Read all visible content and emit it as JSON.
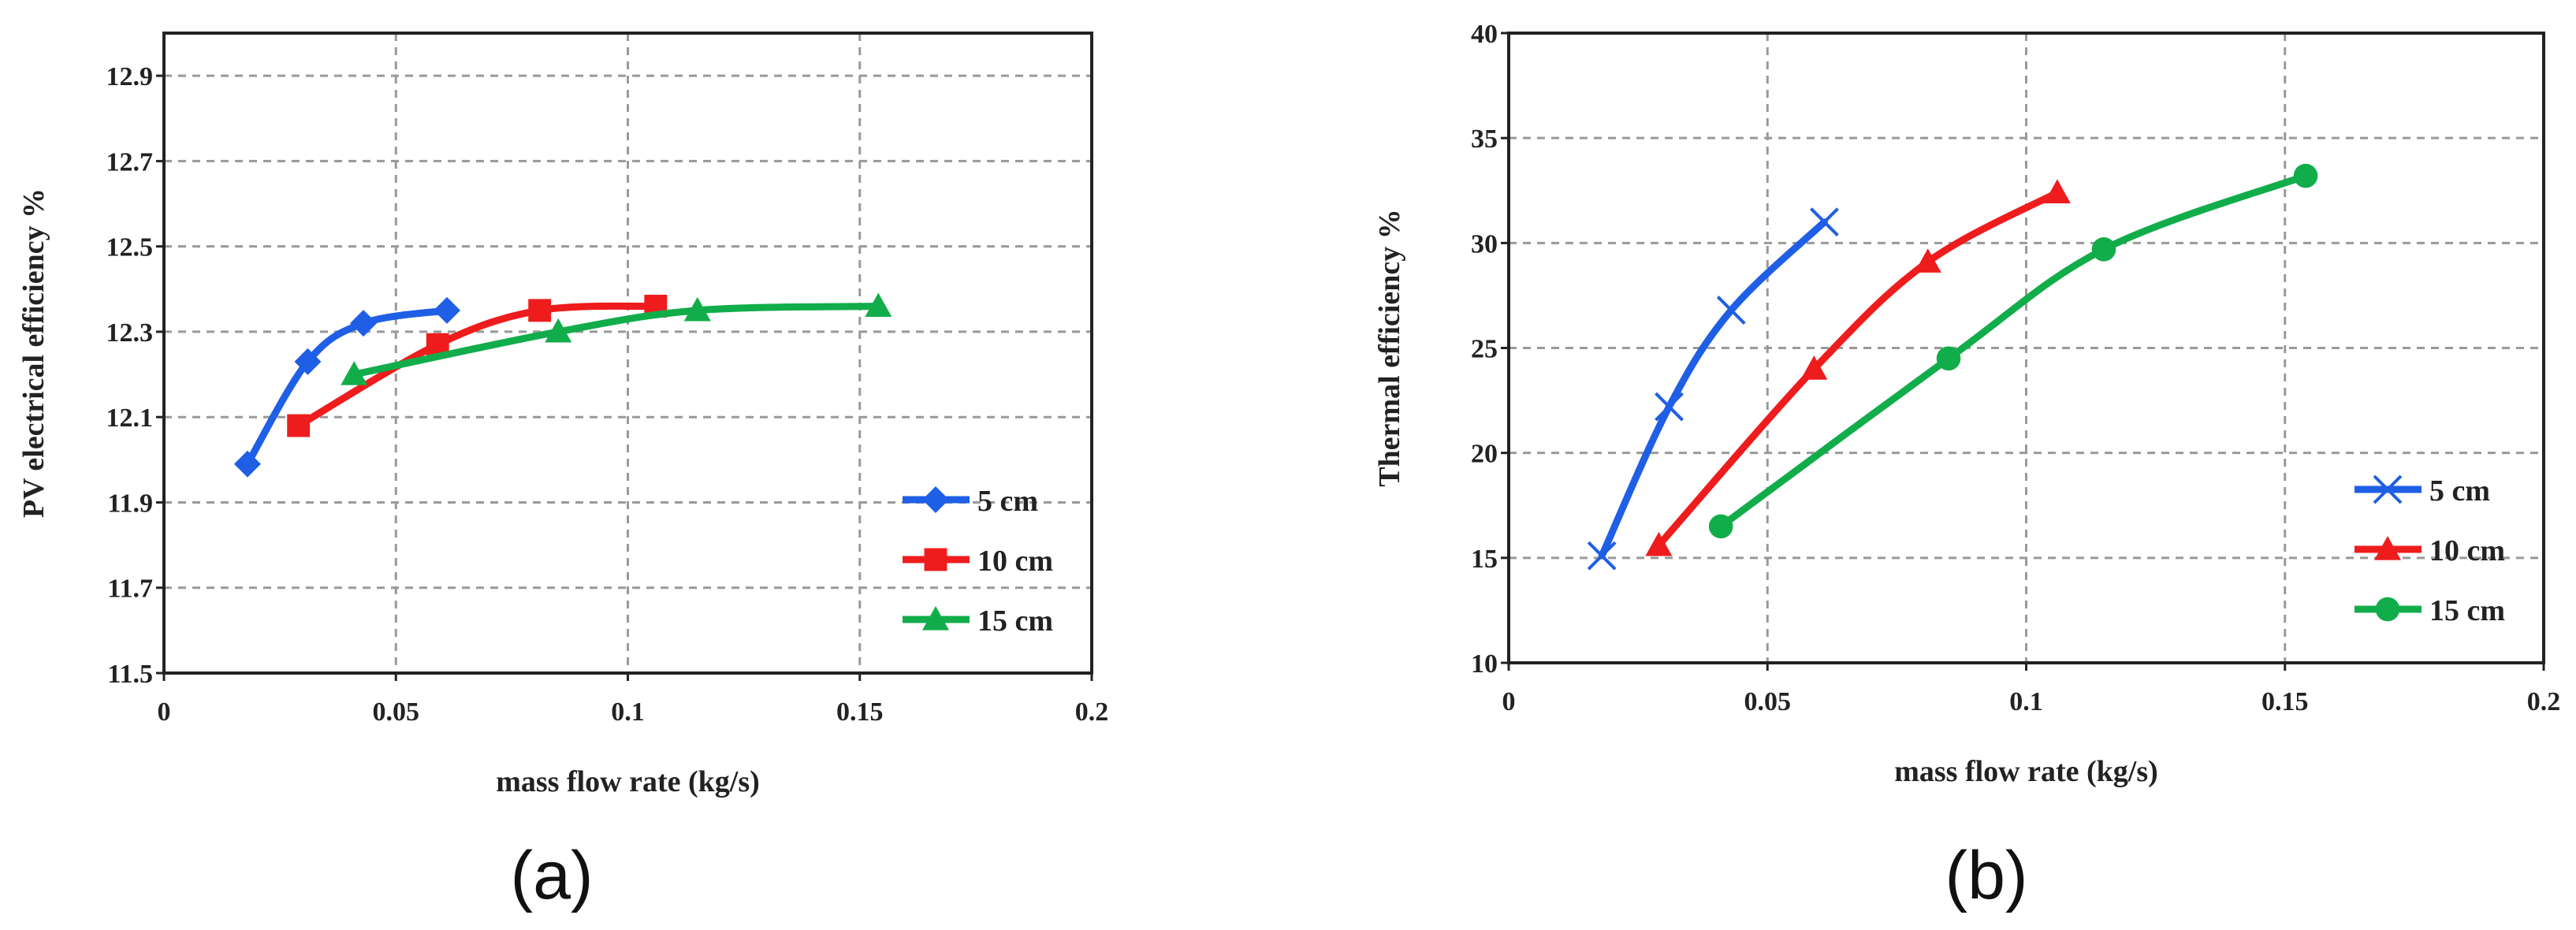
{
  "chart_data": [
    {
      "type": "line",
      "panel_label": "(a)",
      "xlabel": "mass flow rate (kg/s)",
      "ylabel": "PV electrical efficiency %",
      "xlim": [
        0,
        0.2
      ],
      "ylim": [
        11.5,
        13.0
      ],
      "xticks": [
        "0",
        "0.05",
        "0.1",
        "0.15",
        "0.2"
      ],
      "yticks": [
        "11.5",
        "11.7",
        "11.9",
        "12.1",
        "12.3",
        "12.5",
        "12.7",
        "12.9"
      ],
      "grid": true,
      "legend_position": "bottom-right",
      "series": [
        {
          "name": "5 cm",
          "color": "#1f5fe6",
          "marker": "diamond",
          "x": [
            0.018,
            0.031,
            0.043,
            0.061
          ],
          "y": [
            11.99,
            12.23,
            12.32,
            12.35
          ]
        },
        {
          "name": "10 cm",
          "color": "#ee1c1c",
          "marker": "square",
          "x": [
            0.029,
            0.059,
            0.081,
            0.106
          ],
          "y": [
            12.08,
            12.27,
            12.35,
            12.36
          ]
        },
        {
          "name": "15 cm",
          "color": "#12ad4b",
          "marker": "triangle",
          "x": [
            0.041,
            0.085,
            0.115,
            0.154
          ],
          "y": [
            12.2,
            12.3,
            12.35,
            12.36
          ]
        }
      ]
    },
    {
      "type": "line",
      "panel_label": "(b)",
      "xlabel": "mass flow rate (kg/s)",
      "ylabel": "Thermal efficiency %",
      "xlim": [
        0,
        0.2
      ],
      "ylim": [
        10,
        40
      ],
      "xticks": [
        "0",
        "0.05",
        "0.1",
        "0.15",
        "0.2"
      ],
      "yticks": [
        "10",
        "15",
        "20",
        "25",
        "30",
        "35",
        "40"
      ],
      "grid": true,
      "legend_position": "bottom-right",
      "series": [
        {
          "name": "5 cm",
          "color": "#1f5fe6",
          "marker": "x",
          "x": [
            0.018,
            0.031,
            0.043,
            0.061
          ],
          "y": [
            15.1,
            22.2,
            26.8,
            31.0
          ]
        },
        {
          "name": "10 cm",
          "color": "#ee1c1c",
          "marker": "triangle",
          "x": [
            0.029,
            0.059,
            0.081,
            0.106
          ],
          "y": [
            15.6,
            24.0,
            29.1,
            32.4
          ]
        },
        {
          "name": "15 cm",
          "color": "#12ad4b",
          "marker": "circle",
          "x": [
            0.041,
            0.085,
            0.115,
            0.154
          ],
          "y": [
            16.5,
            24.5,
            29.7,
            33.2
          ]
        }
      ]
    }
  ]
}
